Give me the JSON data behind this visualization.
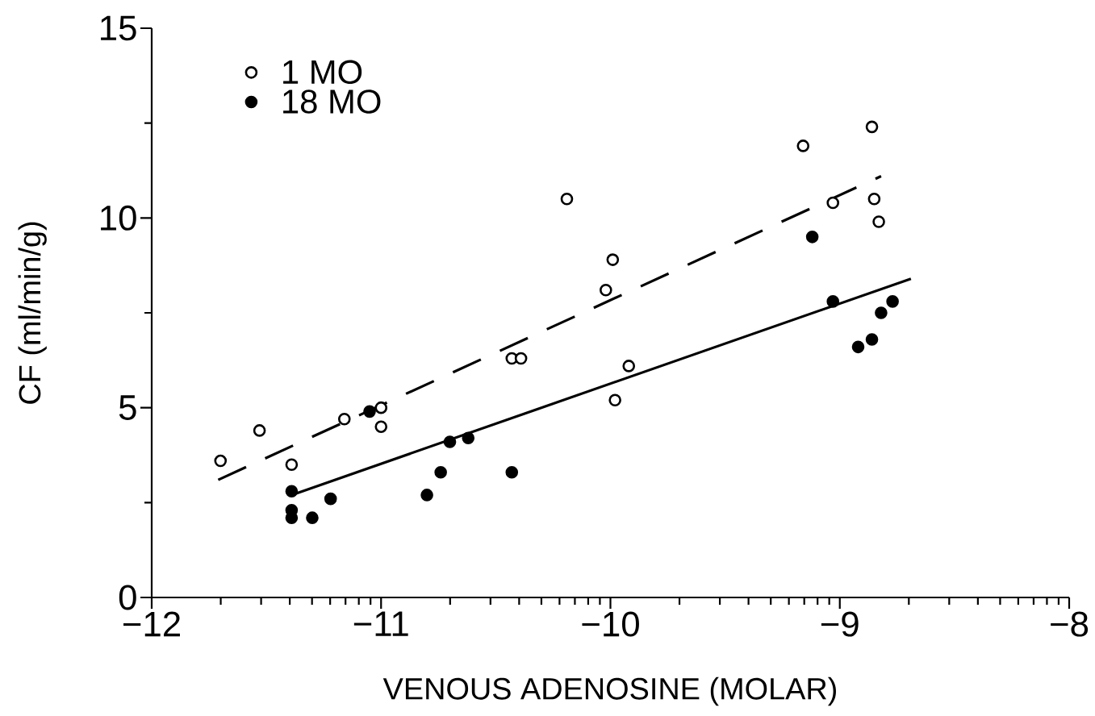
{
  "chart_data": {
    "type": "scatter",
    "xlabel": "VENOUS ADENOSINE (MOLAR)",
    "ylabel": "CF (ml/min/g)",
    "xlim": [
      -12,
      -8
    ],
    "ylim": [
      0,
      15
    ],
    "xticks": [
      {
        "value": -12,
        "label": "−12"
      },
      {
        "value": -11,
        "label": "−11"
      },
      {
        "value": -10,
        "label": "−10"
      },
      {
        "value": -9,
        "label": "−9"
      },
      {
        "value": -8,
        "label": "−8"
      },
      {
        "value": -11.699,
        "label": null
      },
      {
        "value": -11.523,
        "label": null
      },
      {
        "value": -11.398,
        "label": null
      },
      {
        "value": -11.301,
        "label": null
      },
      {
        "value": -11.222,
        "label": null
      },
      {
        "value": -11.155,
        "label": null
      },
      {
        "value": -11.097,
        "label": null
      },
      {
        "value": -11.046,
        "label": null
      },
      {
        "value": -10.699,
        "label": null
      },
      {
        "value": -10.523,
        "label": null
      },
      {
        "value": -10.398,
        "label": null
      },
      {
        "value": -10.301,
        "label": null
      },
      {
        "value": -10.222,
        "label": null
      },
      {
        "value": -10.155,
        "label": null
      },
      {
        "value": -10.097,
        "label": null
      },
      {
        "value": -10.046,
        "label": null
      },
      {
        "value": -9.699,
        "label": null
      },
      {
        "value": -9.523,
        "label": null
      },
      {
        "value": -9.398,
        "label": null
      },
      {
        "value": -9.301,
        "label": null
      },
      {
        "value": -9.222,
        "label": null
      },
      {
        "value": -9.155,
        "label": null
      },
      {
        "value": -9.097,
        "label": null
      },
      {
        "value": -9.046,
        "label": null
      },
      {
        "value": -8.699,
        "label": null
      },
      {
        "value": -8.523,
        "label": null
      },
      {
        "value": -8.398,
        "label": null
      },
      {
        "value": -8.301,
        "label": null
      },
      {
        "value": -8.222,
        "label": null
      },
      {
        "value": -8.155,
        "label": null
      },
      {
        "value": -8.097,
        "label": null
      },
      {
        "value": -8.046,
        "label": null
      }
    ],
    "yticks": [
      0,
      5,
      10,
      15,
      {
        "value": 2.5,
        "label": null
      },
      {
        "value": 7.5,
        "label": null
      },
      {
        "value": 12.5,
        "label": null
      }
    ],
    "legend": "top left",
    "series": [
      {
        "name": "1 MO",
        "marker": "circle",
        "color": "#000000",
        "x": [
          -11.7,
          -11.53,
          -11.39,
          -11.16,
          -11.0,
          -11.0,
          -10.19,
          -9.99,
          -10.02,
          -10.43,
          -10.39,
          -9.92,
          -9.98,
          -9.16,
          -8.86,
          -9.03,
          -8.85,
          -8.83
        ],
        "values": [
          3.6,
          4.4,
          3.5,
          4.7,
          5.0,
          4.5,
          10.5,
          8.9,
          8.1,
          6.3,
          6.3,
          6.1,
          5.2,
          11.9,
          12.4,
          10.4,
          10.5,
          9.9
        ]
      },
      {
        "name": "18 MO",
        "marker": "circle",
        "color": "#000000",
        "x": [
          -11.39,
          -11.39,
          -11.39,
          -11.3,
          -11.22,
          -11.05,
          -10.8,
          -10.74,
          -10.7,
          -10.62,
          -10.43,
          -9.12,
          -9.03,
          -8.92,
          -8.86,
          -8.82,
          -8.77
        ],
        "values": [
          2.8,
          2.3,
          2.1,
          2.1,
          2.6,
          4.9,
          2.7,
          3.3,
          4.1,
          4.2,
          3.3,
          9.5,
          7.8,
          6.6,
          6.8,
          7.5,
          7.8
        ]
      },
      {
        "type": "line",
        "marker": "none",
        "color": "#000000",
        "line_style": "dashed",
        "x": [
          -11.71,
          -8.82
        ],
        "values": [
          3.1,
          11.1
        ]
      },
      {
        "type": "line",
        "marker": "none",
        "color": "#000000",
        "line_style": "solid",
        "x": [
          -11.39,
          -8.69
        ],
        "values": [
          2.7,
          8.4
        ]
      }
    ]
  }
}
